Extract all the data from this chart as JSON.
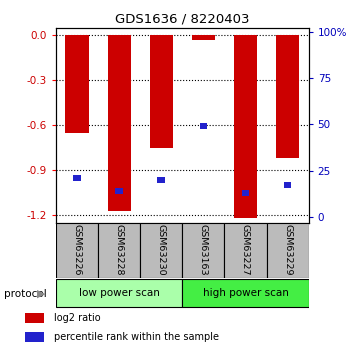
{
  "title": "GDS1636 / 8220403",
  "samples": [
    "GSM63226",
    "GSM63228",
    "GSM63230",
    "GSM63163",
    "GSM63227",
    "GSM63229"
  ],
  "log2_ratio": [
    -0.65,
    -1.17,
    -0.75,
    -0.03,
    -1.22,
    -0.82
  ],
  "percentile_rank": [
    21,
    14,
    20,
    49,
    13,
    17
  ],
  "bar_color": "#cc0000",
  "blue_color": "#2222cc",
  "ylim_left": [
    -1.25,
    0.05
  ],
  "ylim_right": [
    -3.125,
    102.5
  ],
  "yticks_left": [
    0.0,
    -0.3,
    -0.6,
    -0.9,
    -1.2
  ],
  "yticks_right": [
    0,
    25,
    50,
    75,
    100
  ],
  "groups": [
    {
      "label": "low power scan",
      "color": "#aaffaa"
    },
    {
      "label": "high power scan",
      "color": "#44ee44"
    }
  ],
  "protocol_label": "protocol",
  "legend_items": [
    {
      "color": "#cc0000",
      "label": "log2 ratio"
    },
    {
      "color": "#2222cc",
      "label": "percentile rank within the sample"
    }
  ],
  "bar_width": 0.55,
  "tick_label_color_left": "#cc0000",
  "tick_label_color_right": "#0000bb",
  "sample_bg_color": "#bbbbbb",
  "blue_bar_width": 0.18,
  "blue_bar_height": 0.04
}
